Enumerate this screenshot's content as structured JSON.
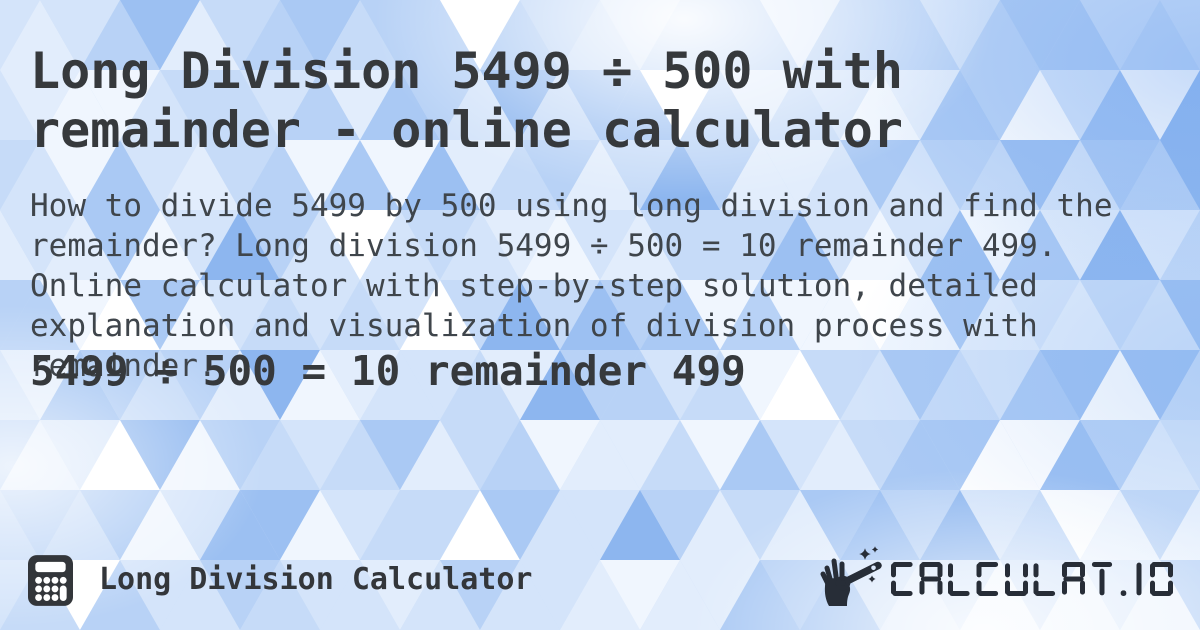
{
  "page": {
    "title": "Long Division 5499 ÷ 500 with remainder - online calculator",
    "description": "How to divide 5499 by 500 using long division and find the remainder? Long division 5499 ÷ 500 = 10 remainder 499. Online calculator with step-by-step solution, detailed explanation and visualization of division process with remainder.",
    "result": "5499 ÷ 500 = 10 remainder 499"
  },
  "footer": {
    "app_name": "Long Division Calculator",
    "brand": "CALCULAT.IO"
  },
  "icons": {
    "footer_left": "calculator-icon",
    "footer_right": "magic-wand-hand-icon"
  },
  "colors": {
    "title_text": "#36393c",
    "body_text": "#3f454b",
    "footer_text": "#33363a",
    "brand": "#272d37",
    "bg_base": "#cadef9",
    "bg_palette": [
      "#ffffff",
      "#f0f6fe",
      "#e2edfc",
      "#d4e4fa",
      "#c6dbf8",
      "#b8d2f6",
      "#aac9f4",
      "#9cc0f2",
      "#8db6ef"
    ]
  }
}
